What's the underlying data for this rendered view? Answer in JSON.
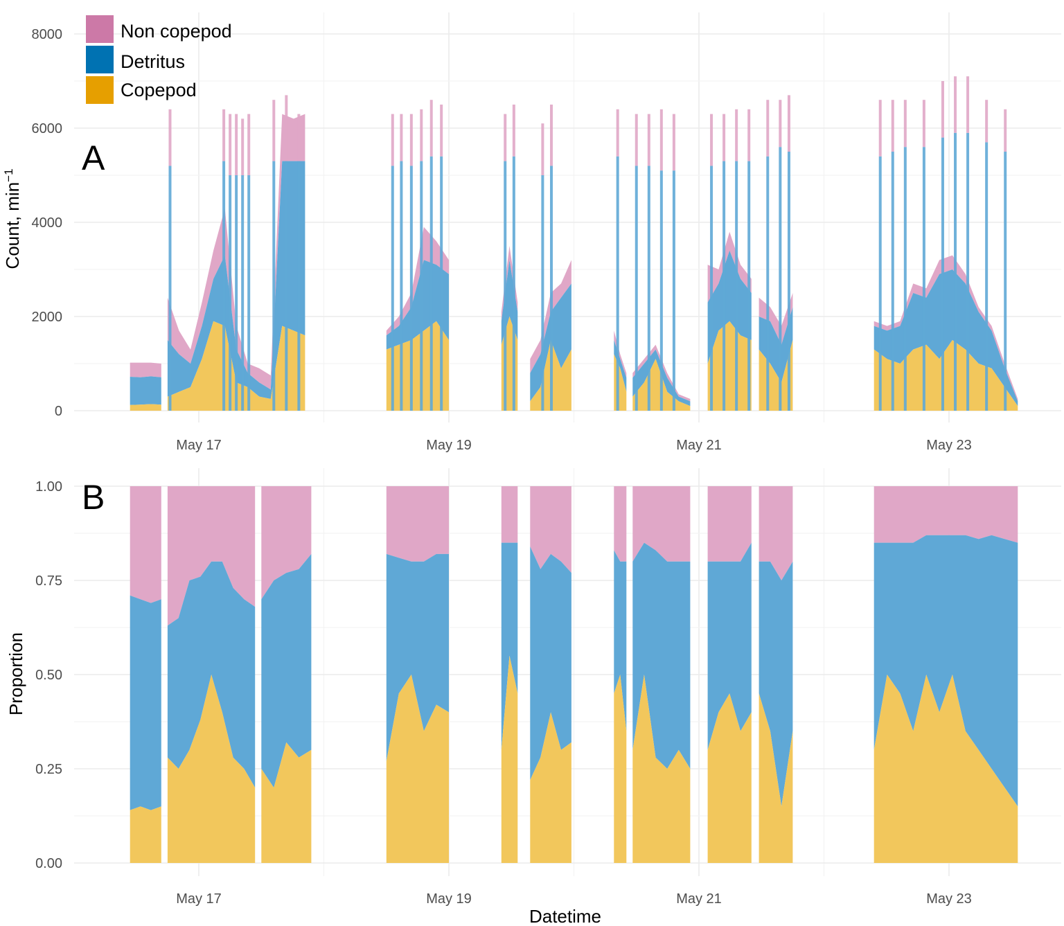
{
  "chart_data": [
    {
      "type": "area",
      "panel": "A",
      "title": "",
      "xlabel": "",
      "ylabel": "Count, min",
      "ylabel_superscript": "−1",
      "ylim": [
        0,
        8000
      ],
      "yticks": [
        "0",
        "2000",
        "4000",
        "6000",
        "8000"
      ],
      "xticks": [
        "May 17",
        "May 19",
        "May 21",
        "May 23"
      ],
      "xlim_days": [
        16.0,
        23.9
      ],
      "legend": [
        "Non copepod",
        "Detritus",
        "Copepod"
      ],
      "segments": [
        {
          "start": 16.45,
          "end": 16.7,
          "copepod": [
            120,
            130,
            140,
            130
          ],
          "detritus": [
            600,
            580,
            590,
            580
          ],
          "noncopepod": [
            300,
            310,
            290,
            290
          ]
        },
        {
          "start": 16.75,
          "end": 17.85,
          "copepod": [
            300,
            400,
            500,
            1100,
            1900,
            1800,
            600,
            500,
            300,
            250,
            1800,
            1700,
            1600
          ],
          "detritus": [
            1200,
            800,
            500,
            700,
            900,
            1500,
            700,
            300,
            300,
            200,
            3500,
            3600,
            3700
          ],
          "noncopepod": [
            900,
            500,
            300,
            500,
            600,
            1000,
            500,
            200,
            300,
            300,
            1000,
            900,
            1000
          ]
        },
        {
          "start": 18.5,
          "end": 19.0,
          "copepod": [
            1300,
            1400,
            1500,
            1700,
            1900,
            1500
          ],
          "detritus": [
            300,
            400,
            700,
            1500,
            1200,
            1400
          ],
          "noncopepod": [
            100,
            200,
            300,
            700,
            500,
            300
          ]
        },
        {
          "start": 19.42,
          "end": 19.55,
          "copepod": [
            1400,
            2000,
            1500
          ],
          "detritus": [
            500,
            1200,
            600
          ],
          "noncopepod": [
            200,
            300,
            200
          ]
        },
        {
          "start": 19.65,
          "end": 19.98,
          "copepod": [
            200,
            500,
            1500,
            900,
            1300
          ],
          "detritus": [
            600,
            700,
            600,
            1500,
            1400
          ],
          "noncopepod": [
            300,
            300,
            400,
            300,
            500
          ]
        },
        {
          "start": 20.32,
          "end": 20.42,
          "copepod": [
            1200,
            900,
            400
          ],
          "detritus": [
            300,
            200,
            300
          ],
          "noncopepod": [
            200,
            100,
            100
          ]
        },
        {
          "start": 20.47,
          "end": 20.93,
          "copepod": [
            300,
            600,
            1100,
            400,
            200,
            100
          ],
          "detritus": [
            400,
            400,
            200,
            300,
            100,
            100
          ],
          "noncopepod": [
            100,
            100,
            100,
            100,
            50,
            50
          ]
        },
        {
          "start": 21.07,
          "end": 21.42,
          "copepod": [
            1000,
            1700,
            1900,
            1600,
            1500
          ],
          "detritus": [
            1300,
            1000,
            1500,
            1200,
            1000
          ],
          "noncopepod": [
            800,
            300,
            400,
            300,
            300
          ]
        },
        {
          "start": 21.48,
          "end": 21.75,
          "copepod": [
            1300,
            1000,
            600,
            1500
          ],
          "detritus": [
            700,
            900,
            800,
            700
          ],
          "noncopepod": [
            400,
            300,
            400,
            300
          ]
        },
        {
          "start": 22.4,
          "end": 23.55,
          "copepod": [
            1300,
            1100,
            1000,
            1300,
            1400,
            1100,
            1500,
            1300,
            1000,
            900,
            500,
            100
          ],
          "detritus": [
            500,
            600,
            800,
            1200,
            1000,
            1800,
            1500,
            1400,
            1100,
            800,
            400,
            100
          ],
          "noncopepod": [
            100,
            100,
            100,
            200,
            200,
            300,
            300,
            200,
            100,
            100,
            100,
            50
          ]
        }
      ],
      "spikes": [
        {
          "day": 16.77,
          "copepod": 0,
          "detritus": 5200,
          "noncopepod": 1200
        },
        {
          "day": 17.2,
          "copepod": 0,
          "detritus": 5300,
          "noncopepod": 1100
        },
        {
          "day": 17.25,
          "copepod": 0,
          "detritus": 5000,
          "noncopepod": 1300
        },
        {
          "day": 17.3,
          "copepod": 0,
          "detritus": 5000,
          "noncopepod": 1300
        },
        {
          "day": 17.35,
          "copepod": 0,
          "detritus": 5000,
          "noncopepod": 1200
        },
        {
          "day": 17.4,
          "copepod": 0,
          "detritus": 5000,
          "noncopepod": 1300
        },
        {
          "day": 17.6,
          "copepod": 0,
          "detritus": 5300,
          "noncopepod": 1300
        },
        {
          "day": 17.7,
          "copepod": 0,
          "detritus": 5300,
          "noncopepod": 1400
        },
        {
          "day": 17.8,
          "copepod": 0,
          "detritus": 5300,
          "noncopepod": 1000
        },
        {
          "day": 18.55,
          "copepod": 0,
          "detritus": 5200,
          "noncopepod": 1100
        },
        {
          "day": 18.62,
          "copepod": 0,
          "detritus": 5300,
          "noncopepod": 1000
        },
        {
          "day": 18.7,
          "copepod": 0,
          "detritus": 5200,
          "noncopepod": 1100
        },
        {
          "day": 18.78,
          "copepod": 0,
          "detritus": 5300,
          "noncopepod": 1100
        },
        {
          "day": 18.86,
          "copepod": 0,
          "detritus": 5400,
          "noncopepod": 1200
        },
        {
          "day": 18.94,
          "copepod": 0,
          "detritus": 5400,
          "noncopepod": 1100
        },
        {
          "day": 19.45,
          "copepod": 0,
          "detritus": 5300,
          "noncopepod": 1000
        },
        {
          "day": 19.52,
          "copepod": 0,
          "detritus": 5400,
          "noncopepod": 1100
        },
        {
          "day": 19.75,
          "copepod": 0,
          "detritus": 5000,
          "noncopepod": 1100
        },
        {
          "day": 19.82,
          "copepod": 0,
          "detritus": 5200,
          "noncopepod": 1300
        },
        {
          "day": 20.35,
          "copepod": 0,
          "detritus": 5400,
          "noncopepod": 1000
        },
        {
          "day": 20.5,
          "copepod": 0,
          "detritus": 5200,
          "noncopepod": 1100
        },
        {
          "day": 20.6,
          "copepod": 0,
          "detritus": 5200,
          "noncopepod": 1100
        },
        {
          "day": 20.7,
          "copepod": 0,
          "detritus": 5100,
          "noncopepod": 1300
        },
        {
          "day": 20.8,
          "copepod": 0,
          "detritus": 5100,
          "noncopepod": 1200
        },
        {
          "day": 21.1,
          "copepod": 0,
          "detritus": 5200,
          "noncopepod": 1100
        },
        {
          "day": 21.2,
          "copepod": 0,
          "detritus": 5300,
          "noncopepod": 1000
        },
        {
          "day": 21.3,
          "copepod": 0,
          "detritus": 5300,
          "noncopepod": 1100
        },
        {
          "day": 21.4,
          "copepod": 0,
          "detritus": 5300,
          "noncopepod": 1100
        },
        {
          "day": 21.55,
          "copepod": 0,
          "detritus": 5400,
          "noncopepod": 1200
        },
        {
          "day": 21.65,
          "copepod": 0,
          "detritus": 5600,
          "noncopepod": 1000
        },
        {
          "day": 21.72,
          "copepod": 0,
          "detritus": 5500,
          "noncopepod": 1200
        },
        {
          "day": 22.45,
          "copepod": 0,
          "detritus": 5400,
          "noncopepod": 1200
        },
        {
          "day": 22.55,
          "copepod": 0,
          "detritus": 5500,
          "noncopepod": 1100
        },
        {
          "day": 22.65,
          "copepod": 0,
          "detritus": 5600,
          "noncopepod": 1000
        },
        {
          "day": 22.8,
          "copepod": 0,
          "detritus": 5600,
          "noncopepod": 1000
        },
        {
          "day": 22.95,
          "copepod": 0,
          "detritus": 5800,
          "noncopepod": 1200
        },
        {
          "day": 23.05,
          "copepod": 0,
          "detritus": 5900,
          "noncopepod": 1200
        },
        {
          "day": 23.15,
          "copepod": 0,
          "detritus": 5900,
          "noncopepod": 1200
        },
        {
          "day": 23.3,
          "copepod": 0,
          "detritus": 5700,
          "noncopepod": 900
        },
        {
          "day": 23.45,
          "copepod": 0,
          "detritus": 5500,
          "noncopepod": 900
        }
      ]
    },
    {
      "type": "area",
      "panel": "B",
      "title": "",
      "xlabel": "Datetime",
      "ylabel": "Proportion",
      "ylim": [
        0,
        1
      ],
      "yticks": [
        "0.00",
        "0.25",
        "0.50",
        "0.75",
        "1.00"
      ],
      "xticks": [
        "May 17",
        "May 19",
        "May 21",
        "May 23"
      ],
      "xlim_days": [
        16.0,
        23.9
      ],
      "legend": [
        "Non copepod",
        "Detritus",
        "Copepod"
      ],
      "segments": [
        {
          "start": 16.45,
          "end": 16.7,
          "copepod": [
            0.14,
            0.15,
            0.14,
            0.15
          ],
          "detritus": [
            0.57,
            0.55,
            0.55,
            0.55
          ]
        },
        {
          "start": 16.75,
          "end": 17.45,
          "copepod": [
            0.28,
            0.25,
            0.3,
            0.38,
            0.5,
            0.4,
            0.28,
            0.25,
            0.2
          ],
          "detritus": [
            0.35,
            0.4,
            0.45,
            0.38,
            0.3,
            0.4,
            0.45,
            0.45,
            0.48
          ]
        },
        {
          "start": 17.5,
          "end": 17.9,
          "copepod": [
            0.25,
            0.2,
            0.32,
            0.28,
            0.3
          ],
          "detritus": [
            0.45,
            0.55,
            0.45,
            0.5,
            0.52
          ]
        },
        {
          "start": 18.5,
          "end": 19.0,
          "copepod": [
            0.27,
            0.45,
            0.5,
            0.35,
            0.42,
            0.4
          ],
          "detritus": [
            0.55,
            0.36,
            0.3,
            0.45,
            0.4,
            0.42
          ]
        },
        {
          "start": 19.42,
          "end": 19.55,
          "copepod": [
            0.3,
            0.55,
            0.45
          ],
          "detritus": [
            0.55,
            0.3,
            0.4
          ]
        },
        {
          "start": 19.65,
          "end": 19.98,
          "copepod": [
            0.22,
            0.28,
            0.4,
            0.3,
            0.32
          ],
          "detritus": [
            0.62,
            0.5,
            0.42,
            0.5,
            0.45
          ]
        },
        {
          "start": 20.32,
          "end": 20.42,
          "copepod": [
            0.45,
            0.5,
            0.35
          ],
          "detritus": [
            0.38,
            0.3,
            0.45
          ]
        },
        {
          "start": 20.47,
          "end": 20.93,
          "copepod": [
            0.3,
            0.5,
            0.28,
            0.25,
            0.3,
            0.25
          ],
          "detritus": [
            0.5,
            0.35,
            0.55,
            0.55,
            0.5,
            0.55
          ]
        },
        {
          "start": 21.07,
          "end": 21.42,
          "copepod": [
            0.3,
            0.4,
            0.45,
            0.35,
            0.4
          ],
          "detritus": [
            0.5,
            0.4,
            0.35,
            0.45,
            0.45
          ]
        },
        {
          "start": 21.48,
          "end": 21.75,
          "copepod": [
            0.45,
            0.35,
            0.15,
            0.35
          ],
          "detritus": [
            0.35,
            0.45,
            0.6,
            0.45
          ]
        },
        {
          "start": 22.4,
          "end": 23.55,
          "copepod": [
            0.3,
            0.5,
            0.45,
            0.35,
            0.5,
            0.4,
            0.5,
            0.35,
            0.3,
            0.25,
            0.2,
            0.15
          ],
          "detritus": [
            0.55,
            0.35,
            0.4,
            0.5,
            0.37,
            0.47,
            0.37,
            0.52,
            0.56,
            0.62,
            0.66,
            0.7
          ]
        }
      ]
    }
  ],
  "legend": {
    "items": [
      {
        "label": "Non copepod",
        "color": "#cc79a7"
      },
      {
        "label": "Detritus",
        "color": "#0072b2"
      },
      {
        "label": "Copepod",
        "color": "#e69f00"
      }
    ]
  },
  "panel_labels": {
    "a": "A",
    "b": "B"
  },
  "colors": {
    "copepod": "#f2c75c",
    "detritus": "#5fa8d6",
    "noncopepod": "#e0a7c7",
    "grid": "#ebebeb"
  }
}
